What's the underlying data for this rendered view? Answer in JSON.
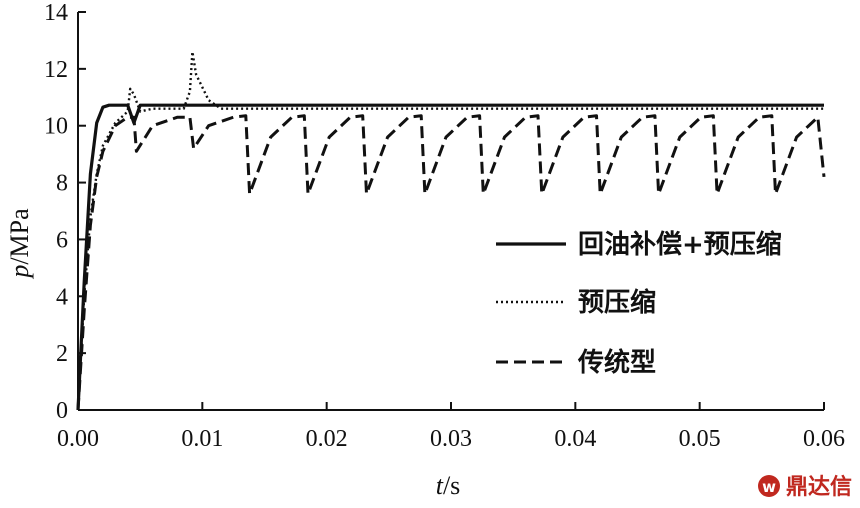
{
  "chart_data": {
    "type": "line",
    "xlabel_var": "t",
    "xlabel_unit": "/s",
    "ylabel_var": "p",
    "ylabel_unit": "/MPa",
    "xlim": [
      0,
      0.06
    ],
    "ylim": [
      0,
      14
    ],
    "x_ticks": [
      "0.00",
      "0.01",
      "0.02",
      "0.03",
      "0.04",
      "0.05",
      "0.06"
    ],
    "y_ticks": [
      "0",
      "2",
      "4",
      "6",
      "8",
      "10",
      "12",
      "14"
    ],
    "grid": false,
    "legend_position": "center-right",
    "series": [
      {
        "name": "回油补偿+预压缩",
        "style": "solid",
        "color": "#111111",
        "x": [
          0,
          0.0005,
          0.001,
          0.0015,
          0.002,
          0.0025,
          0.004,
          0.0045,
          0.005,
          0.006,
          0.06
        ],
        "y": [
          0,
          4.5,
          8.3,
          10.1,
          10.65,
          10.72,
          10.72,
          10.1,
          10.72,
          10.72,
          10.72
        ]
      },
      {
        "name": "预压缩",
        "style": "dotted",
        "color": "#111111",
        "x": [
          0,
          0.0005,
          0.001,
          0.0015,
          0.002,
          0.003,
          0.004,
          0.0042,
          0.0045,
          0.005,
          0.006,
          0.008,
          0.0085,
          0.009,
          0.0092,
          0.0095,
          0.0105,
          0.0115,
          0.012,
          0.06
        ],
        "y": [
          0,
          4,
          6.8,
          8.3,
          9.3,
          10.1,
          10.5,
          11.3,
          11.1,
          10.5,
          10.6,
          10.6,
          10.6,
          11.2,
          12.6,
          11.8,
          10.9,
          10.6,
          10.6,
          10.6
        ]
      },
      {
        "name": "传统型",
        "style": "dashed",
        "color": "#111111",
        "x": [
          0,
          0.0005,
          0.001,
          0.0015,
          0.002,
          0.003,
          0.004,
          0.0045,
          0.0047,
          0.006,
          0.008,
          0.009,
          0.0093,
          0.0105,
          0.0125,
          0.0135,
          0.0138,
          0.0155,
          0.0172,
          0.0182,
          0.0185,
          0.0202,
          0.0219,
          0.0229,
          0.0232,
          0.0249,
          0.0266,
          0.0276,
          0.0279,
          0.0296,
          0.0313,
          0.0323,
          0.0326,
          0.0343,
          0.036,
          0.037,
          0.0373,
          0.039,
          0.0407,
          0.0417,
          0.042,
          0.0437,
          0.0454,
          0.0464,
          0.0467,
          0.0484,
          0.0501,
          0.0511,
          0.0514,
          0.0531,
          0.0548,
          0.0558,
          0.0561,
          0.0578,
          0.0595,
          0.06
        ],
        "y": [
          0,
          3.5,
          6.5,
          8.2,
          9.1,
          10.0,
          10.3,
          10.3,
          9.1,
          10.0,
          10.3,
          10.3,
          9.2,
          10.0,
          10.3,
          10.35,
          7.6,
          9.6,
          10.3,
          10.35,
          7.6,
          9.6,
          10.3,
          10.35,
          7.6,
          9.6,
          10.3,
          10.35,
          7.6,
          9.6,
          10.3,
          10.35,
          7.6,
          9.6,
          10.3,
          10.35,
          7.6,
          9.6,
          10.3,
          10.35,
          7.6,
          9.6,
          10.3,
          10.35,
          7.6,
          9.6,
          10.3,
          10.35,
          7.6,
          9.6,
          10.3,
          10.35,
          7.6,
          9.6,
          10.3,
          8.2
        ]
      }
    ]
  },
  "watermark": {
    "text": "鼎达信",
    "color": "#c0281f"
  }
}
